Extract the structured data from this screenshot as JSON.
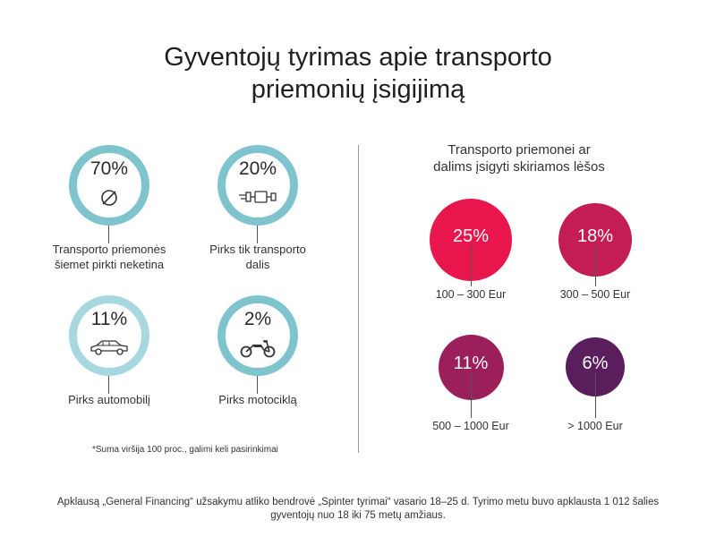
{
  "title_lines": [
    "Gyventojų tyrimas apie transporto",
    "priemonių įsigijimą"
  ],
  "colors": {
    "ring_teal": "#7fc3cd",
    "dot_25": "#e8164c",
    "dot_18": "#c41c54",
    "dot_11": "#9b1f5b",
    "dot_6": "#5a1e5c",
    "divider": "#9a9a9a"
  },
  "chart_data": [
    {
      "type": "table",
      "items": [
        {
          "percent": "70%",
          "value": 70,
          "icon": "no-symbol-icon",
          "label": "Transporto priemonės šiemet pirkti neketina"
        },
        {
          "percent": "20%",
          "value": 20,
          "icon": "exhaust-pipe-icon",
          "label": "Pirks tik transporto dalis"
        },
        {
          "percent": "11%",
          "value": 11,
          "icon": "car-icon",
          "label": "Pirks automobilį"
        },
        {
          "percent": "2%",
          "value": 2,
          "icon": "motorcycle-icon",
          "label": "Pirks motociklą"
        }
      ]
    },
    {
      "type": "scatter",
      "title": "Transporto priemonei ar dalims įsigyti skiriamos lėšos",
      "categories": [
        "100 – 300 Eur",
        "300 – 500 Eur",
        "500 – 1000 Eur",
        "> 1000 Eur"
      ],
      "values": [
        25,
        18,
        11,
        6
      ],
      "labels": [
        "25%",
        "18%",
        "11%",
        "6%"
      ]
    }
  ],
  "right_title_lines": [
    "Transporto priemonei ar",
    "dalims įsigyti skiriamos lėšos"
  ],
  "footnote": "*Suma viršija 100 proc., galimi keli pasirinkimai",
  "source_lines": [
    "Apklausą „General Financing“ užsakymu atliko bendrovė „Spinter tyrimai“ vasario 18–25 d. Tyrimo metu buvo apklausta 1 012 šalies",
    "gyventojų nuo 18 iki 75 metų amžiaus."
  ]
}
